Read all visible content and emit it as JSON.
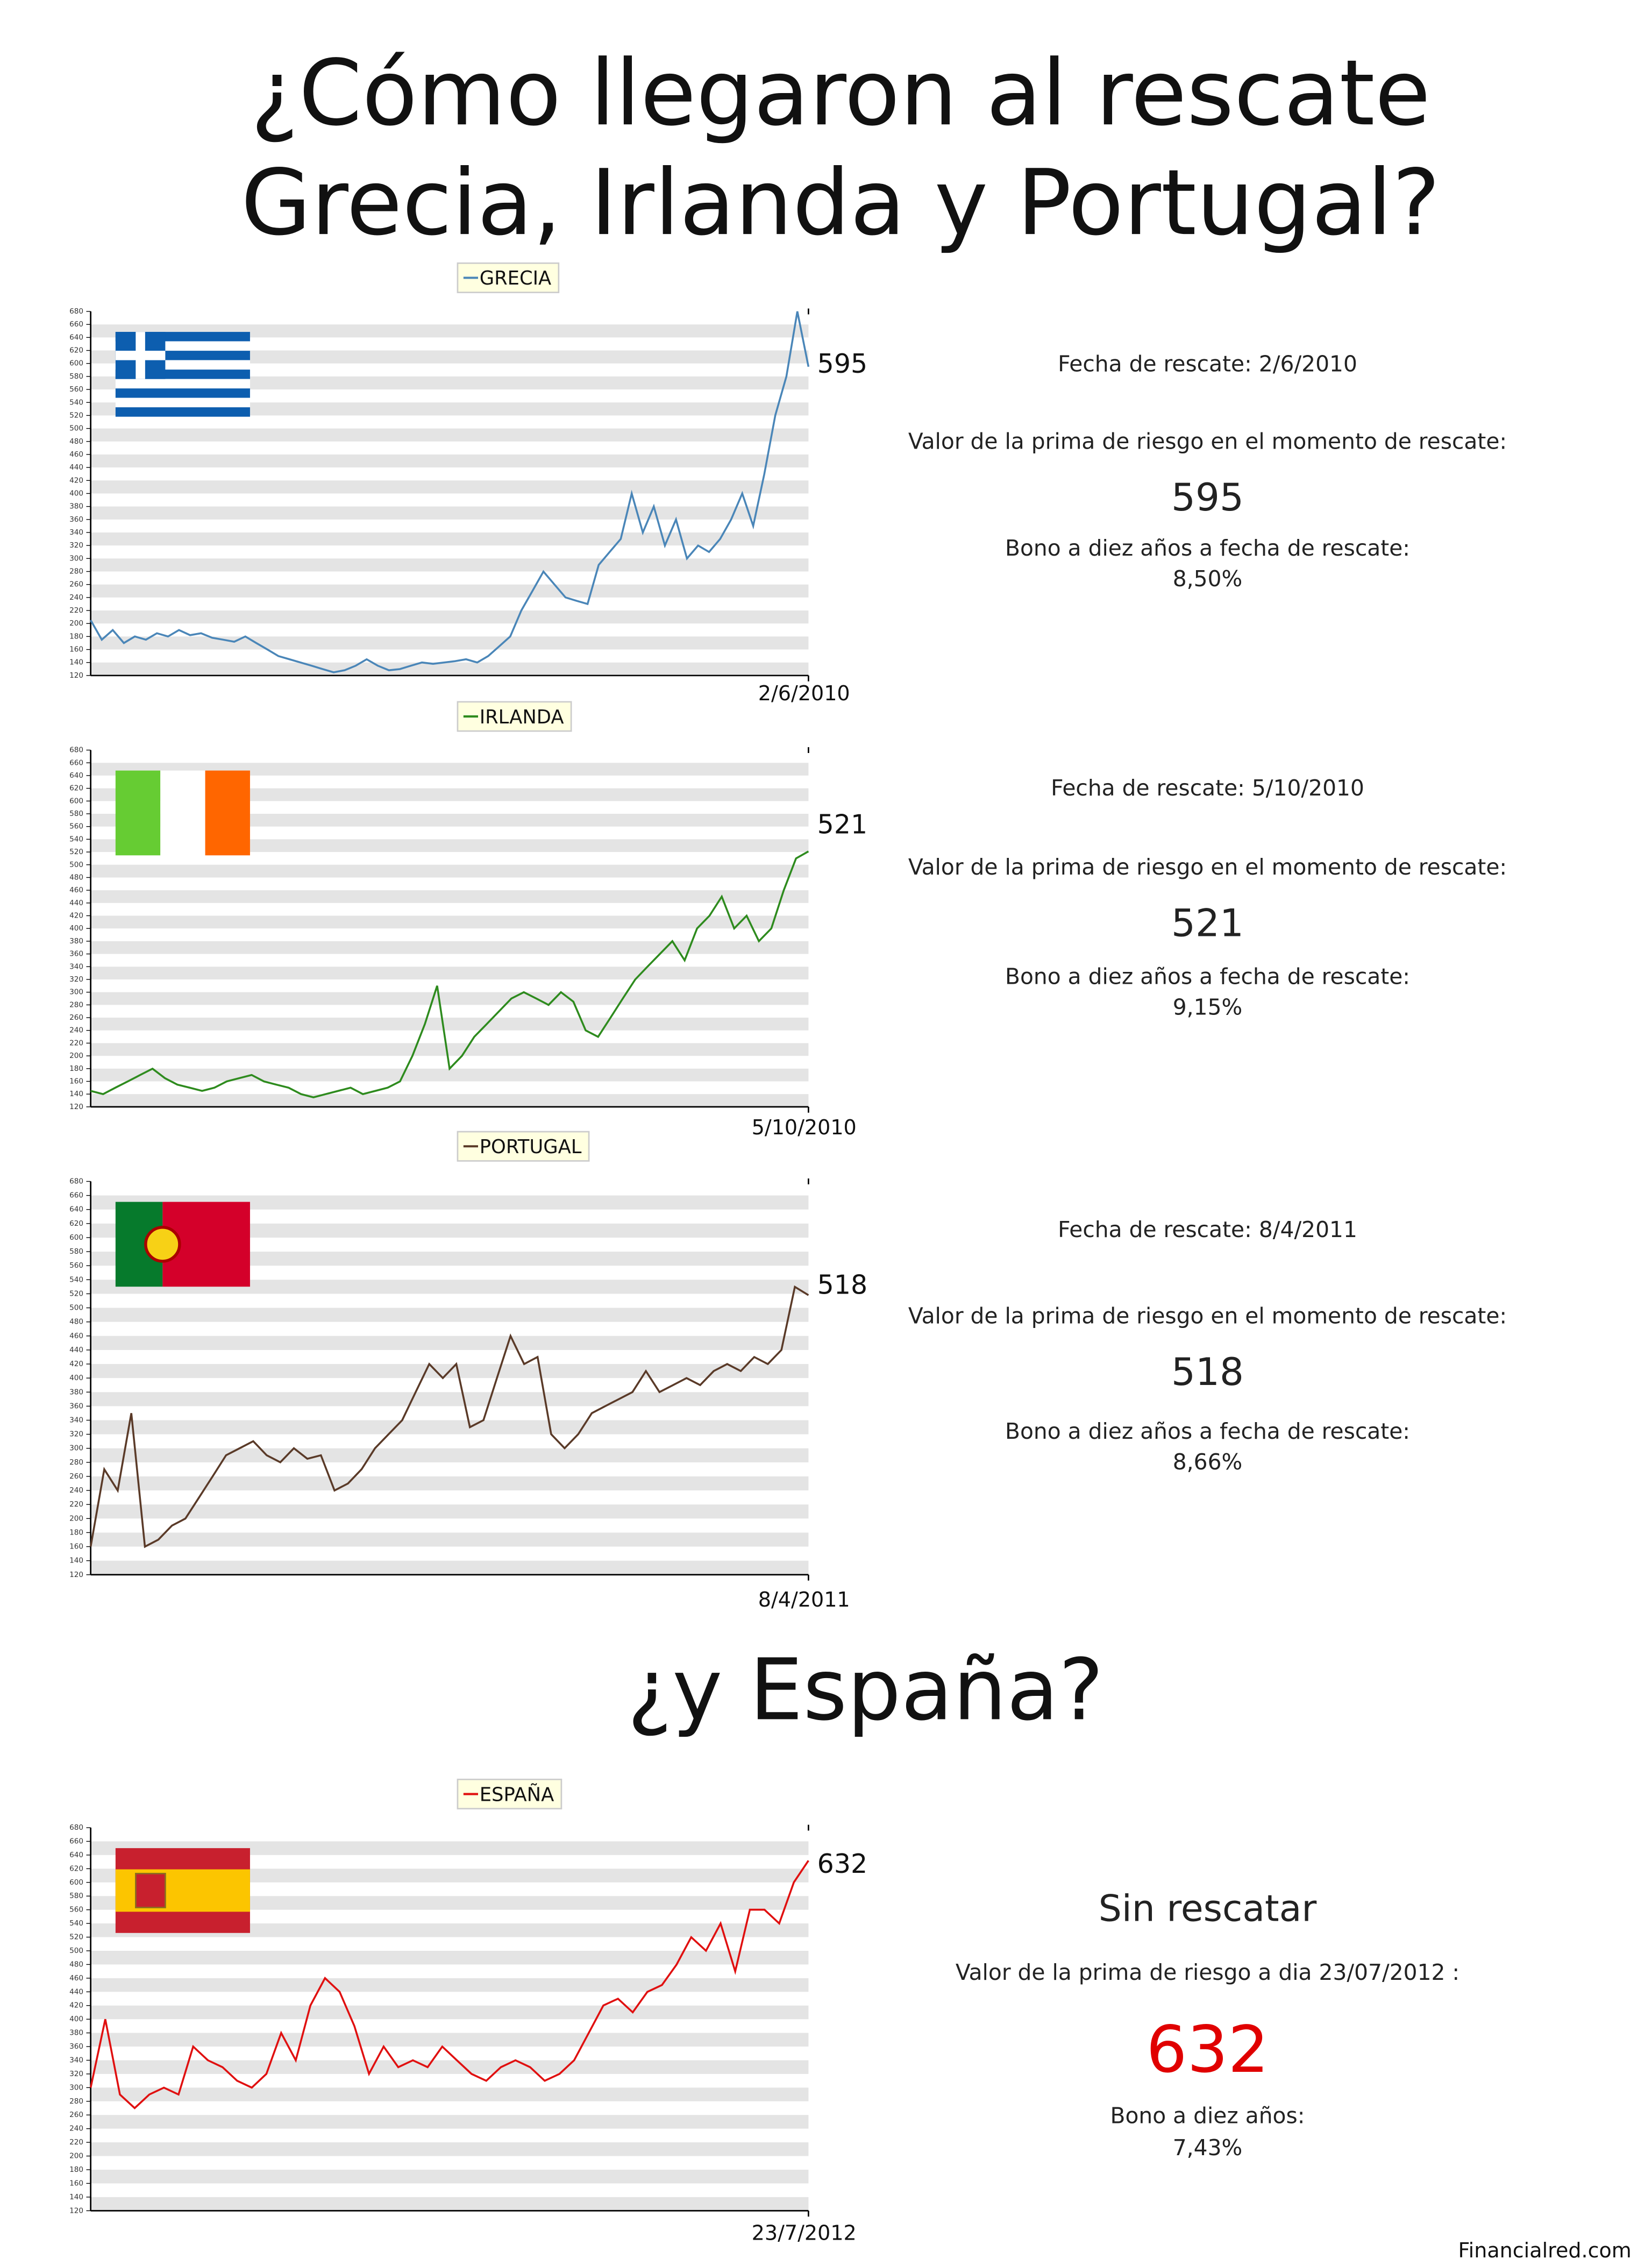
{
  "title_lines": [
    "¿Cómo llegaron al rescate",
    "Grecia, Irlanda y Portugal?"
  ],
  "subtitle": "¿y España?",
  "source": "Financialred.com",
  "chart_data": [
    {
      "type": "line",
      "series": [
        {
          "name": "GRECIA",
          "color": "#4a86b8",
          "values": [
            205,
            175,
            190,
            170,
            180,
            175,
            185,
            180,
            190,
            182,
            185,
            178,
            175,
            172,
            180,
            170,
            160,
            150,
            145,
            140,
            135,
            130,
            125,
            128,
            135,
            145,
            135,
            128,
            130,
            135,
            140,
            138,
            140,
            142,
            145,
            140,
            150,
            165,
            180,
            220,
            250,
            280,
            260,
            240,
            235,
            230,
            290,
            310,
            330,
            400,
            340,
            380,
            320,
            360,
            300,
            320,
            310,
            330,
            360,
            400,
            350,
            430,
            520,
            580,
            680,
            595
          ]
        }
      ],
      "end_date": "2/6/2010",
      "ylim": [
        120,
        680
      ],
      "yticks": [
        120,
        140,
        160,
        180,
        200,
        220,
        240,
        260,
        280,
        300,
        320,
        340,
        360,
        380,
        400,
        420,
        440,
        460,
        480,
        500,
        520,
        540,
        560,
        580,
        600,
        620,
        640,
        660,
        680
      ],
      "grid": true,
      "panel": {
        "date": "Fecha de rescate: 2/6/2010",
        "prima_label": "Valor de la prima de riesgo en el momento de rescate:",
        "prima": 595,
        "bono_label": "Bono a diez años a fecha de rescate:",
        "bono": "8,50%"
      }
    },
    {
      "type": "line",
      "series": [
        {
          "name": "IRLANDA",
          "color": "#2e8b1e",
          "values": [
            145,
            140,
            150,
            160,
            170,
            180,
            165,
            155,
            150,
            145,
            150,
            160,
            165,
            170,
            160,
            155,
            150,
            140,
            135,
            140,
            145,
            150,
            140,
            145,
            150,
            160,
            200,
            250,
            310,
            180,
            200,
            230,
            250,
            270,
            290,
            300,
            290,
            280,
            300,
            285,
            240,
            230,
            260,
            290,
            320,
            340,
            360,
            380,
            350,
            400,
            420,
            450,
            400,
            420,
            380,
            400,
            460,
            510,
            521
          ]
        }
      ],
      "end_date": "5/10/2010",
      "ylim": [
        120,
        680
      ],
      "yticks": [
        120,
        140,
        160,
        180,
        200,
        220,
        240,
        260,
        280,
        300,
        320,
        340,
        360,
        380,
        400,
        420,
        440,
        460,
        480,
        500,
        520,
        540,
        560,
        580,
        600,
        620,
        640,
        660,
        680
      ],
      "grid": true,
      "panel": {
        "date": "Fecha de rescate: 5/10/2010",
        "prima_label": "Valor de la prima de riesgo en el momento de rescate:",
        "prima": 521,
        "bono_label": "Bono a diez años a fecha de rescate:",
        "bono": "9,15%"
      }
    },
    {
      "type": "line",
      "series": [
        {
          "name": "PORTUGAL",
          "color": "#5a3a28",
          "values": [
            160,
            270,
            240,
            350,
            160,
            170,
            190,
            200,
            230,
            260,
            290,
            300,
            310,
            290,
            280,
            300,
            285,
            290,
            240,
            250,
            270,
            300,
            320,
            340,
            380,
            420,
            400,
            420,
            330,
            340,
            400,
            460,
            420,
            430,
            320,
            300,
            320,
            350,
            360,
            370,
            380,
            410,
            380,
            390,
            400,
            390,
            410,
            420,
            410,
            430,
            420,
            440,
            530,
            518
          ]
        }
      ],
      "end_date": "8/4/2011",
      "ylim": [
        120,
        680
      ],
      "yticks": [
        120,
        140,
        160,
        180,
        200,
        220,
        240,
        260,
        280,
        300,
        320,
        340,
        360,
        380,
        400,
        420,
        440,
        460,
        480,
        500,
        520,
        540,
        560,
        580,
        600,
        620,
        640,
        660,
        680
      ],
      "grid": true,
      "panel": {
        "date": "Fecha de rescate: 8/4/2011",
        "prima_label": "Valor de la prima de riesgo en el momento de rescate:",
        "prima": 518,
        "bono_label": "Bono a diez años a fecha de rescate:",
        "bono": "8,66%"
      }
    },
    {
      "type": "line",
      "series": [
        {
          "name": "ESPAÑA",
          "color": "#e01010",
          "values": [
            300,
            400,
            290,
            270,
            290,
            300,
            290,
            360,
            340,
            330,
            310,
            300,
            320,
            380,
            340,
            420,
            460,
            440,
            390,
            320,
            360,
            330,
            340,
            330,
            360,
            340,
            320,
            310,
            330,
            340,
            330,
            310,
            320,
            340,
            380,
            420,
            430,
            410,
            440,
            450,
            480,
            520,
            500,
            540,
            470,
            560,
            560,
            540,
            600,
            632
          ]
        }
      ],
      "end_date": "23/7/2012",
      "ylim": [
        120,
        680
      ],
      "yticks": [
        120,
        140,
        160,
        180,
        200,
        220,
        240,
        260,
        280,
        300,
        320,
        340,
        360,
        380,
        400,
        420,
        440,
        460,
        480,
        500,
        520,
        540,
        560,
        580,
        600,
        620,
        640,
        660,
        680
      ],
      "grid": true,
      "panel": {
        "status": "Sin rescatar",
        "prima_label": "Valor de la prima de riesgo a dia 23/07/2012 :",
        "prima": 632,
        "prima_color": "#e00000",
        "bono_label": "Bono a diez años:",
        "bono": "7,43%"
      }
    }
  ]
}
